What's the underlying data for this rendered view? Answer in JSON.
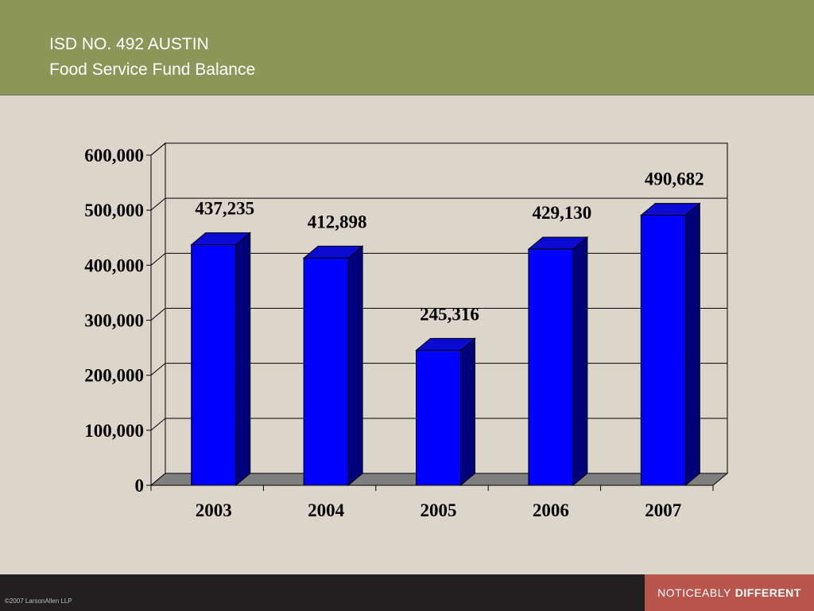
{
  "header": {
    "title_line1": "ISD NO. 492 AUSTIN",
    "title_line2": "Food Service Fund Balance"
  },
  "footer": {
    "copyright": "©2007 LarsonAllen LLP",
    "tagline_light": "NOTICEABLY",
    "tagline_bold": "DIFFERENT"
  },
  "colors": {
    "header_bg": "#8c9658",
    "slide_bg": "#dbd5ca",
    "bar_front": "#0000ff",
    "bar_side": "#00007a",
    "bar_top": "#0a0ad0",
    "floor": "#7f7f7f",
    "footer_bg": "#221f21",
    "tagline_bg": "#b8564e"
  },
  "chart_data": {
    "type": "bar",
    "three_d": true,
    "categories": [
      "2003",
      "2004",
      "2005",
      "2006",
      "2007"
    ],
    "values": [
      437235,
      412898,
      245316,
      429130,
      490682
    ],
    "data_labels": [
      "437,235",
      "412,898",
      "245,316",
      "429,130",
      "490,682"
    ],
    "ylim": [
      0,
      600000
    ],
    "ytick_values": [
      0,
      100000,
      200000,
      300000,
      400000,
      500000,
      600000
    ],
    "ytick_labels": [
      "0",
      "100,000",
      "200,000",
      "300,000",
      "400,000",
      "500,000",
      "600,000"
    ],
    "grid": true,
    "legend": "none"
  }
}
